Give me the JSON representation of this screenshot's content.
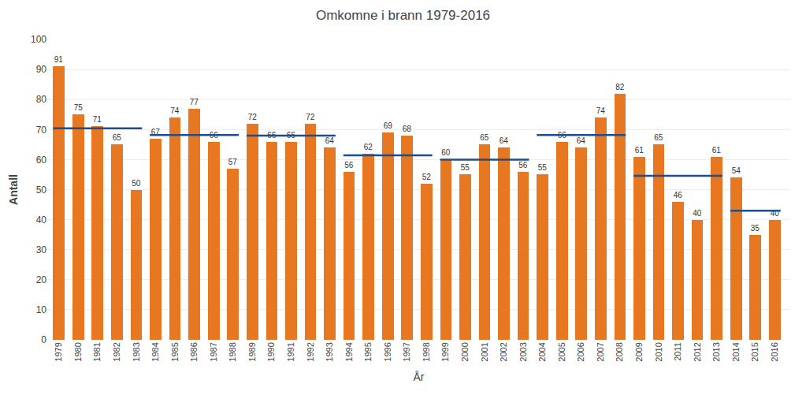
{
  "chart_data": {
    "type": "bar",
    "title": "Omkomne i brann 1979-2016",
    "xlabel": "År",
    "ylabel": "Antall",
    "x": [
      1979,
      1980,
      1981,
      1982,
      1983,
      1984,
      1985,
      1986,
      1987,
      1988,
      1989,
      1990,
      1991,
      1992,
      1993,
      1994,
      1995,
      1996,
      1997,
      1998,
      1999,
      2000,
      2001,
      2002,
      2003,
      2004,
      2005,
      2006,
      2007,
      2008,
      2009,
      2010,
      2011,
      2012,
      2013,
      2014,
      2015,
      2016
    ],
    "values": [
      91,
      75,
      71,
      65,
      50,
      67,
      74,
      77,
      66,
      57,
      72,
      66,
      66,
      72,
      64,
      56,
      62,
      69,
      68,
      52,
      60,
      55,
      65,
      64,
      56,
      55,
      66,
      64,
      74,
      82,
      61,
      65,
      46,
      40,
      61,
      54,
      35,
      40
    ],
    "color": "#E87722",
    "data_labels": true,
    "averages": {
      "color": "#1F4E8F",
      "segments": [
        {
          "x_start": 1979,
          "x_end": 1983,
          "value": 70.4
        },
        {
          "x_start": 1984,
          "x_end": 1988,
          "value": 68.2
        },
        {
          "x_start": 1989,
          "x_end": 1993,
          "value": 68.0
        },
        {
          "x_start": 1994,
          "x_end": 1998,
          "value": 61.4
        },
        {
          "x_start": 1999,
          "x_end": 2003,
          "value": 60.0
        },
        {
          "x_start": 2004,
          "x_end": 2008,
          "value": 68.2
        },
        {
          "x_start": 2009,
          "x_end": 2013,
          "value": 54.6
        },
        {
          "x_start": 2014,
          "x_end": 2016,
          "value": 43.0
        }
      ]
    },
    "xlim": [
      1978.4,
      2016.8
    ],
    "xticks": [
      1979,
      1980,
      1981,
      1982,
      1983,
      1984,
      1985,
      1986,
      1987,
      1988,
      1989,
      1990,
      1991,
      1992,
      1993,
      1994,
      1995,
      1996,
      1997,
      1998,
      1999,
      2000,
      2001,
      2002,
      2003,
      2004,
      2005,
      2006,
      2007,
      2008,
      2009,
      2010,
      2011,
      2012,
      2013,
      2014,
      2015,
      2016
    ],
    "ylim": [
      0,
      100
    ],
    "yticks": [
      0,
      10,
      20,
      30,
      40,
      50,
      60,
      70,
      80,
      90,
      100
    ],
    "grid": true
  }
}
